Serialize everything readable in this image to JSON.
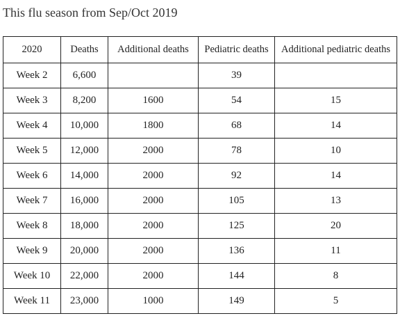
{
  "title": "This flu season from Sep/Oct 2019",
  "table": {
    "header": [
      "2020",
      "Deaths",
      "Additional deaths",
      "Pediatric deaths",
      "Additional pediatric deaths"
    ],
    "rows": [
      [
        "Week 2",
        "6,600",
        null,
        "39",
        null
      ],
      [
        "Week 3",
        "8,200",
        "1600",
        "54",
        "15"
      ],
      [
        "Week 4",
        "10,000",
        "1800",
        "68",
        "14"
      ],
      [
        "Week 5",
        "12,000",
        "2000",
        "78",
        "10"
      ],
      [
        "Week 6",
        "14,000",
        "2000",
        "92",
        "14"
      ],
      [
        "Week 7",
        "16,000",
        "2000",
        "105",
        "13"
      ],
      [
        "Week 8",
        "18,000",
        "2000",
        "125",
        "20"
      ],
      [
        "Week 9",
        "20,000",
        "2000",
        "136",
        "11"
      ],
      [
        "Week 10",
        "22,000",
        "2000",
        "144",
        "8"
      ],
      [
        "Week 11",
        "23,000",
        "1000",
        "149",
        "5"
      ]
    ]
  }
}
